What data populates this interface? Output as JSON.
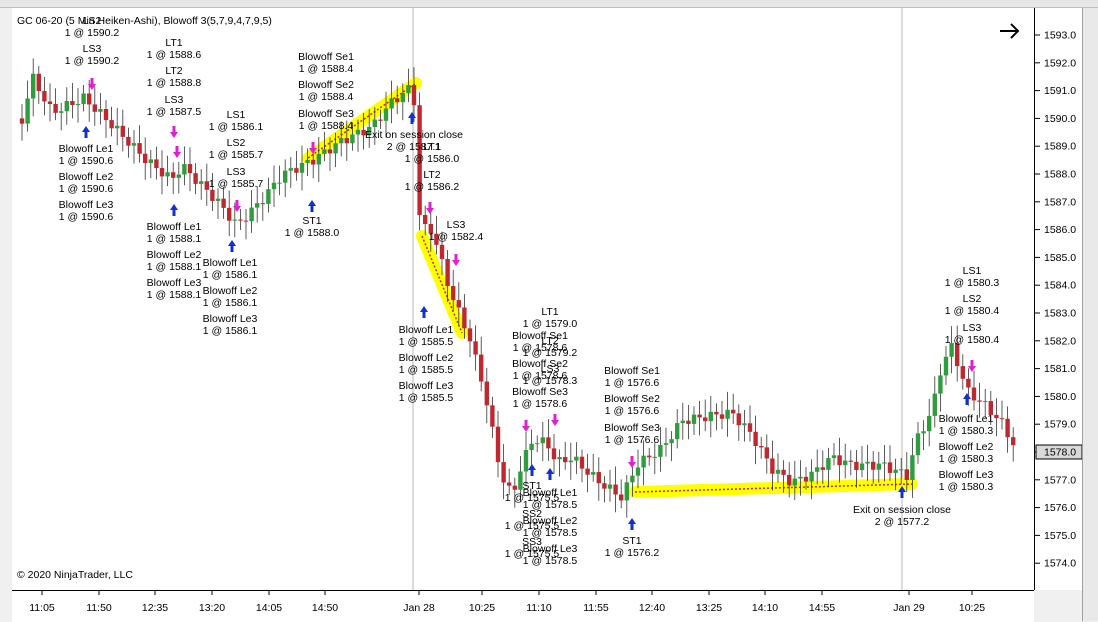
{
  "chart_title": "GC 06-20 (5 Min Heiken-Ashi), Blowoff 3(5,7,9,4,7,9,5)",
  "copyright": "© 2020 NinjaTrader, LLC",
  "price_axis": {
    "ticks": [
      "1593.0",
      "1592.0",
      "1591.0",
      "1590.0",
      "1589.0",
      "1588.0",
      "1587.0",
      "1586.0",
      "1585.0",
      "1584.0",
      "1583.0",
      "1582.0",
      "1581.0",
      "1580.0",
      "1579.0",
      "1578.0",
      "1577.0",
      "1576.0",
      "1575.0",
      "1574.0"
    ],
    "current_price": "1578.0"
  },
  "time_axis": {
    "ticks": [
      "11:05",
      "11:50",
      "12:35",
      "13:20",
      "14:05",
      "14:50",
      "Jan 28",
      "10:25",
      "11:10",
      "11:55",
      "12:40",
      "13:25",
      "14:10",
      "14:55",
      "Jan 29",
      "10:25"
    ]
  },
  "annotations": [
    {
      "lines": [
        "LS2",
        "1 @ 1590.2"
      ]
    },
    {
      "lines": [
        "LS3",
        "1 @ 1590.2"
      ]
    },
    {
      "lines": [
        "LT1",
        "1 @ 1588.6"
      ]
    },
    {
      "lines": [
        "LT2",
        "1 @ 1588.8"
      ]
    },
    {
      "lines": [
        "LS3",
        "1 @ 1587.5"
      ]
    },
    {
      "lines": [
        "LS1",
        "1 @ 1586.1"
      ]
    },
    {
      "lines": [
        "LS2",
        "1 @ 1585.7"
      ]
    },
    {
      "lines": [
        "LS3",
        "1 @ 1585.7"
      ]
    },
    {
      "lines": [
        "Blowoff Se1",
        "1 @ 1588.4"
      ]
    },
    {
      "lines": [
        "Blowoff Se2",
        "1 @ 1588.4"
      ]
    },
    {
      "lines": [
        "Blowoff Se3",
        "1 @ 1588.4"
      ]
    },
    {
      "lines": [
        "Exit on session close",
        "2 @ 1587.1"
      ]
    },
    {
      "lines": [
        "LT1",
        "1 @ 1586.0"
      ]
    },
    {
      "lines": [
        "LT2",
        "1 @ 1586.2"
      ]
    },
    {
      "lines": [
        "LS3",
        "1 @ 1582.4"
      ]
    },
    {
      "lines": [
        "Blowoff Le1",
        "1 @ 1590.6"
      ]
    },
    {
      "lines": [
        "Blowoff Le2",
        "1 @ 1590.6"
      ]
    },
    {
      "lines": [
        "Blowoff Le3",
        "1 @ 1590.6"
      ]
    },
    {
      "lines": [
        "Blowoff Le1",
        "1 @ 1588.1"
      ]
    },
    {
      "lines": [
        "Blowoff Le2",
        "1 @ 1588.1"
      ]
    },
    {
      "lines": [
        "Blowoff Le3",
        "1 @ 1588.1"
      ]
    },
    {
      "lines": [
        "Blowoff Le1",
        "1 @ 1586.1"
      ]
    },
    {
      "lines": [
        "Blowoff Le2",
        "1 @ 1586.1"
      ]
    },
    {
      "lines": [
        "Blowoff Le3",
        "1 @ 1586.1"
      ]
    },
    {
      "lines": [
        "ST1",
        "1 @ 1588.0"
      ]
    },
    {
      "lines": [
        "Blowoff Le1",
        "1 @ 1585.5"
      ]
    },
    {
      "lines": [
        "Blowoff Le2",
        "1 @ 1585.5"
      ]
    },
    {
      "lines": [
        "Blowoff Le3",
        "1 @ 1585.5"
      ]
    },
    {
      "lines": [
        "LT1",
        "1 @ 1579.0"
      ]
    },
    {
      "lines": [
        "Blowoff Se1",
        "1 @ 1578.6"
      ]
    },
    {
      "lines": [
        "LT2",
        "1 @ 1579.2"
      ]
    },
    {
      "lines": [
        "Blowoff Se2",
        "1 @ 1578.6"
      ]
    },
    {
      "lines": [
        "LS3",
        "1 @ 1578.3"
      ]
    },
    {
      "lines": [
        "Blowoff Se3",
        "1 @ 1578.6"
      ]
    },
    {
      "lines": [
        "ST1",
        "1 @ 1575.5"
      ]
    },
    {
      "lines": [
        "Blowoff Le1",
        "1 @ 1578.5"
      ]
    },
    {
      "lines": [
        "SS2",
        "1 @ 1575.5"
      ]
    },
    {
      "lines": [
        "Blowoff Le2",
        "1 @ 1578.5"
      ]
    },
    {
      "lines": [
        "SS3",
        "1 @ 1575.5"
      ]
    },
    {
      "lines": [
        "Blowoff Le3",
        "1 @ 1578.5"
      ]
    },
    {
      "lines": [
        "Blowoff Se1",
        "1 @ 1576.6"
      ]
    },
    {
      "lines": [
        "Blowoff Se2",
        "1 @ 1576.6"
      ]
    },
    {
      "lines": [
        "Blowoff Se3",
        "1 @ 1576.6"
      ]
    },
    {
      "lines": [
        "ST1",
        "1 @ 1576.2"
      ]
    },
    {
      "lines": [
        "LS1",
        "1 @ 1580.3"
      ]
    },
    {
      "lines": [
        "LS2",
        "1 @ 1580.4"
      ]
    },
    {
      "lines": [
        "LS3",
        "1 @ 1580.4"
      ]
    },
    {
      "lines": [
        "Blowoff Le1",
        "1 @ 1580.3"
      ]
    },
    {
      "lines": [
        "Blowoff Le2",
        "1 @ 1580.3"
      ]
    },
    {
      "lines": [
        "Blowoff Le3",
        "1 @ 1580.3"
      ]
    },
    {
      "lines": [
        "Exit on session close",
        "2 @ 1577.2"
      ]
    }
  ],
  "colors": {
    "up_candle": "#2e9d3c",
    "down_candle": "#c0282f",
    "highlight": "#ffff00",
    "trade_line": "#c0282f",
    "long_arrow": "#1030d0",
    "short_arrow": "#e020d0"
  },
  "icons": [
    "arrow-right-icon"
  ]
}
